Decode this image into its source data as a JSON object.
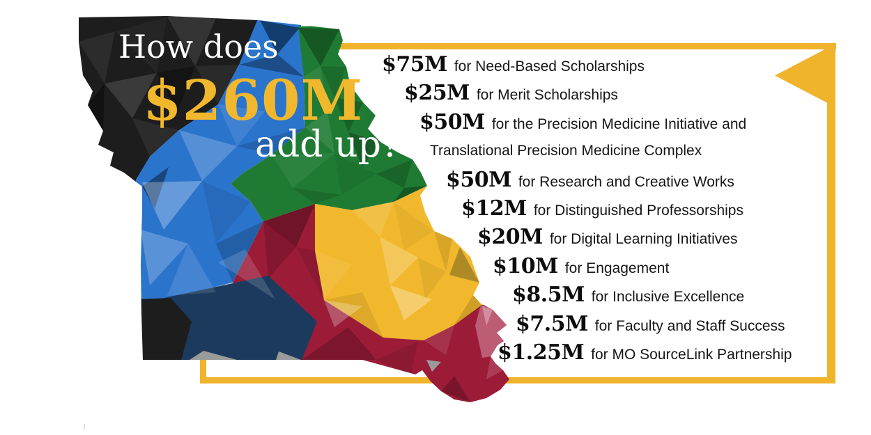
{
  "title": {
    "prefix": "How does",
    "amount": "$260M",
    "suffix": "add up?"
  },
  "allocations": [
    {
      "amount": "$75M",
      "value_millions": 75,
      "text": "for Need-Based Scholarships"
    },
    {
      "amount": "$25M",
      "value_millions": 25,
      "text": "for Merit Scholarships"
    },
    {
      "amount": "$50M",
      "value_millions": 50,
      "text": "for the Precision Medicine Initiative and"
    },
    {
      "amount": "",
      "text": "Translational Precision Medicine Complex"
    },
    {
      "amount": "$50M",
      "value_millions": 50,
      "text": "for Research and Creative Works"
    },
    {
      "amount": "$12M",
      "value_millions": 12,
      "text": "for Distinguished Professorships"
    },
    {
      "amount": "$20M",
      "value_millions": 20,
      "text": "for Digital Learning Initiatives"
    },
    {
      "amount": "$10M",
      "value_millions": 10,
      "text": "for Engagement"
    },
    {
      "amount": "$8.5M",
      "value_millions": 8.5,
      "text": "for Inclusive Excellence"
    },
    {
      "amount": "$7.5M",
      "value_millions": 7.5,
      "text": "for Faculty and Staff Success"
    },
    {
      "amount": "$1.25M",
      "value_millions": 1.25,
      "text": "for MO SourceLink Partnership"
    }
  ],
  "map_shape": "missouri-state-low-poly",
  "colors": {
    "gold": "#EFB42C",
    "gold_text": "#F1B82D",
    "black": "#1D1D1D",
    "blue": "#2B74CC",
    "navy": "#1C3A5E",
    "navy_deep": "#123D6E",
    "green": "#1F7B33",
    "red": "#9C1C38",
    "pink": "#BD5D74",
    "olive": "#AE8A26",
    "gray": "#9A9A9A",
    "white": "#FFFFFF"
  }
}
